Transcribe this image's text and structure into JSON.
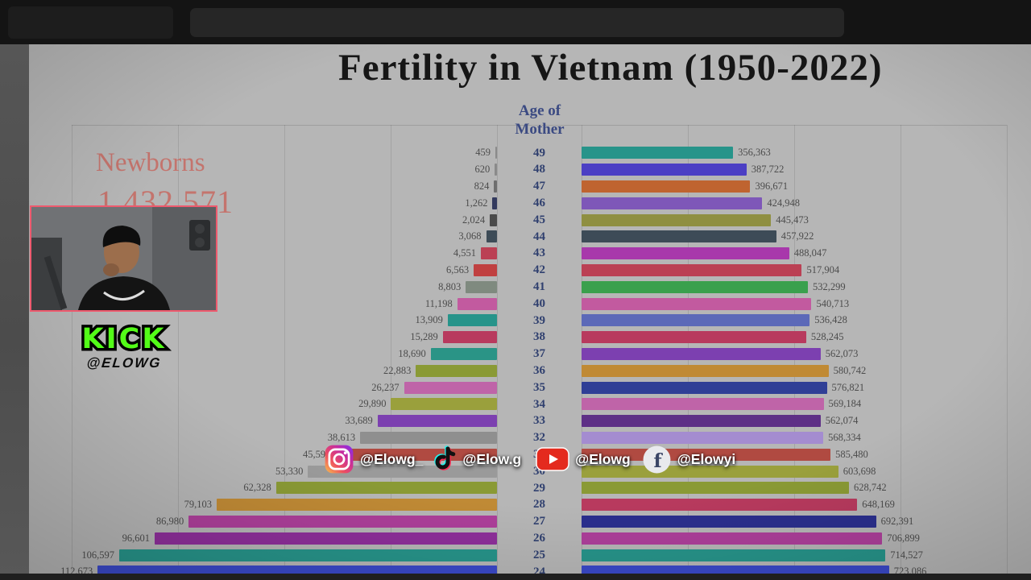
{
  "chart_data": {
    "type": "bar",
    "orientation": "dual-horizontal-pyramid",
    "title": "Fertility in Vietnam (1950-2022)",
    "center_header": {
      "line1": "Age of",
      "line2": "Mother"
    },
    "left_panel": {
      "title": "Newborns",
      "total": "1,432,571"
    },
    "left_axis": {
      "direction": "leftward",
      "gridline_step": 30000,
      "max_gridline": 120000
    },
    "right_axis": {
      "direction": "rightward",
      "gridline_step": 250000,
      "max_gridline": 1000000
    },
    "legend_position": "none",
    "grid": true,
    "rows": [
      {
        "age": "49",
        "left_value": 459,
        "left_label": "459",
        "left_color": "#8a8a8a",
        "right_value": 356363,
        "right_label": "356,363",
        "right_color": "#27948a"
      },
      {
        "age": "48",
        "left_value": 620,
        "left_label": "620",
        "left_color": "#8a8a8a",
        "right_value": 387722,
        "right_label": "387,722",
        "right_color": "#4b3fc4"
      },
      {
        "age": "47",
        "left_value": 824,
        "left_label": "824",
        "left_color": "#6e6e6e",
        "right_value": 396671,
        "right_label": "396,671",
        "right_color": "#bf6430"
      },
      {
        "age": "46",
        "left_value": 1262,
        "left_label": "1,262",
        "left_color": "#333a5e",
        "right_value": 424948,
        "right_label": "424,948",
        "right_color": "#7e57b8"
      },
      {
        "age": "45",
        "left_value": 2024,
        "left_label": "2,024",
        "left_color": "#4a4a4a",
        "right_value": 445473,
        "right_label": "445,473",
        "right_color": "#8f8f41"
      },
      {
        "age": "44",
        "left_value": 3068,
        "left_label": "3,068",
        "left_color": "#3d4b57",
        "right_value": 457922,
        "right_label": "457,922",
        "right_color": "#3d4b57"
      },
      {
        "age": "43",
        "left_value": 4551,
        "left_label": "4,551",
        "left_color": "#bb4054",
        "right_value": 488047,
        "right_label": "488,047",
        "right_color": "#a838ab"
      },
      {
        "age": "42",
        "left_value": 6563,
        "left_label": "6,563",
        "left_color": "#c04040",
        "right_value": 517904,
        "right_label": "517,904",
        "right_color": "#bb4054"
      },
      {
        "age": "41",
        "left_value": 8803,
        "left_label": "8,803",
        "left_color": "#7f8a7f",
        "right_value": 532299,
        "right_label": "532,299",
        "right_color": "#3aa04d"
      },
      {
        "age": "40",
        "left_value": 11198,
        "left_label": "11,198",
        "left_color": "#c25a9f",
        "right_value": 540713,
        "right_label": "540,713",
        "right_color": "#c25a9f"
      },
      {
        "age": "39",
        "left_value": 13909,
        "left_label": "13,909",
        "left_color": "#27948a",
        "right_value": 536428,
        "right_label": "536,428",
        "right_color": "#5c69b8"
      },
      {
        "age": "38",
        "left_value": 15289,
        "left_label": "15,289",
        "left_color": "#b83a5e",
        "right_value": 528245,
        "right_label": "528,245",
        "right_color": "#b83a5e"
      },
      {
        "age": "37",
        "left_value": 18690,
        "left_label": "18,690",
        "left_color": "#2a9486",
        "right_value": 562073,
        "right_label": "562,073",
        "right_color": "#7c40b0"
      },
      {
        "age": "36",
        "left_value": 22883,
        "left_label": "22,883",
        "left_color": "#8a9a35",
        "right_value": 580742,
        "right_label": "580,742",
        "right_color": "#c08a35"
      },
      {
        "age": "35",
        "left_value": 26237,
        "left_label": "26,237",
        "left_color": "#bf64a8",
        "right_value": 576821,
        "right_label": "576,821",
        "right_color": "#303f96"
      },
      {
        "age": "34",
        "left_value": 29890,
        "left_label": "29,890",
        "left_color": "#9aa03c",
        "right_value": 569184,
        "right_label": "569,184",
        "right_color": "#bf64a8"
      },
      {
        "age": "33",
        "left_value": 33689,
        "left_label": "33,689",
        "left_color": "#7c40b0",
        "right_value": 562074,
        "right_label": "562,074",
        "right_color": "#5e2f86"
      },
      {
        "age": "32",
        "left_value": 38613,
        "left_label": "38,613",
        "left_color": "#8f8f8f",
        "right_value": 568334,
        "right_label": "568,334",
        "right_color": "#a48cd0"
      },
      {
        "age": "31",
        "left_value": 45593,
        "left_label": "45,593",
        "left_color": "#b04a41",
        "right_value": 585480,
        "right_label": "585,480",
        "right_color": "#b04a41"
      },
      {
        "age": "30",
        "left_value": 53330,
        "left_label": "53,330",
        "left_color": "#9a9a9a",
        "right_value": 603698,
        "right_label": "603,698",
        "right_color": "#9aa03c"
      },
      {
        "age": "29",
        "left_value": 62328,
        "left_label": "62,328",
        "left_color": "#8a9a35",
        "right_value": 628742,
        "right_label": "628,742",
        "right_color": "#8a9a35"
      },
      {
        "age": "28",
        "left_value": 79103,
        "left_label": "79,103",
        "left_color": "#c08a35",
        "right_value": 648169,
        "right_label": "648,169",
        "right_color": "#b83a5e"
      },
      {
        "age": "27",
        "left_value": 86980,
        "left_label": "86,980",
        "left_color": "#ad3f9a",
        "right_value": 692391,
        "right_label": "692,391",
        "right_color": "#2b2f8e"
      },
      {
        "age": "26",
        "left_value": 96601,
        "left_label": "96,601",
        "left_color": "#8e2f9a",
        "right_value": 706899,
        "right_label": "706,899",
        "right_color": "#ad3f9a"
      },
      {
        "age": "25",
        "left_value": 106597,
        "left_label": "106,597",
        "left_color": "#27948a",
        "right_value": 714527,
        "right_label": "714,527",
        "right_color": "#27948a"
      },
      {
        "age": "24",
        "left_value": 112673,
        "left_label": "112,673",
        "left_color": "#3a49c9",
        "right_value": 723086,
        "right_label": "723,086",
        "right_color": "#3a49c9"
      }
    ]
  },
  "overlay": {
    "kick": {
      "brand": "KICK",
      "handle": "@ELOWG",
      "brand_color": "#53fc18"
    },
    "social": {
      "items": [
        {
          "platform": "instagram",
          "handle": "@Elowg_"
        },
        {
          "platform": "tiktok",
          "handle": "@Elow.g"
        },
        {
          "platform": "youtube",
          "handle": "@Elowg"
        },
        {
          "platform": "facebook",
          "handle": "@Elowyi"
        }
      ]
    }
  }
}
